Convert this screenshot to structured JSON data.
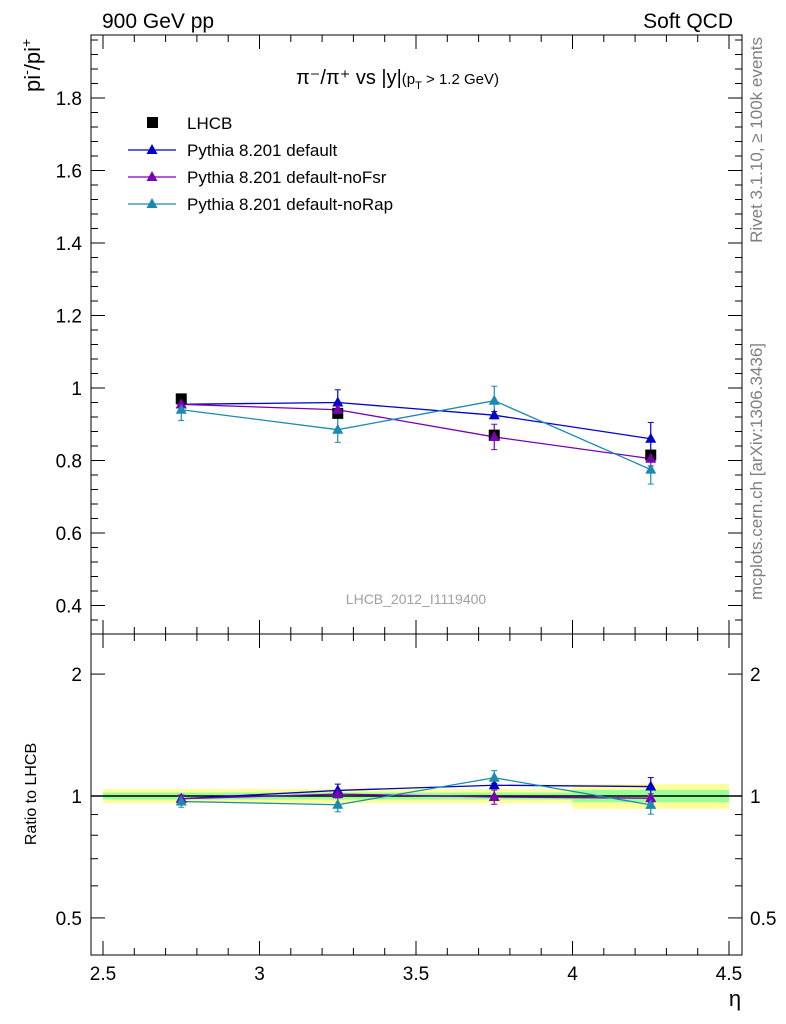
{
  "header": {
    "left": "900 GeV pp",
    "right": "Soft QCD"
  },
  "side_labels": {
    "rivet": "Rivet 3.1.10, ≥ 100k events",
    "mcplots": "mcplots.cern.ch [arXiv:1306.3436]"
  },
  "main": {
    "title_main": "π⁻/π⁺ vs |y|",
    "title_sub": "(p",
    "title_sub_idx": "T",
    "title_sub_rest": " > 1.2 GeV)",
    "ylabel_base": "pi",
    "ylabel_sup1": "-",
    "ylabel_mid": "/pi",
    "ylabel_sup2": "+",
    "watermark": "LHCB_2012_I1119400"
  },
  "ratio": {
    "ylabel": "Ratio to LHCB"
  },
  "colors": {
    "data": "#000000",
    "default": "#0000cc",
    "noFsr": "#7a00b0",
    "noRap": "#1a8ab0",
    "band_yellow": "#ffff99",
    "band_green": "#99ff99"
  },
  "chart_data": {
    "type": "scatter",
    "xlabel": "η",
    "ylabel": "pi-/pi+",
    "xlim": [
      2.5,
      4.5
    ],
    "ylim": [
      0.35,
      1.98
    ],
    "ratio_ylim": [
      0.4,
      2.3
    ],
    "x_ticks": [
      "2.5",
      "3",
      "3.5",
      "4",
      "4.5"
    ],
    "y_ticks": [
      "0.4",
      "0.6",
      "0.8",
      "1",
      "1.2",
      "1.4",
      "1.6",
      "1.8"
    ],
    "ratio_y_ticks": [
      "0.5",
      "1",
      "2"
    ],
    "legend": [
      "LHCB",
      "Pythia 8.201 default",
      "Pythia 8.201 default-noFsr",
      "Pythia 8.201 default-noRap"
    ],
    "data": {
      "name": "LHCB",
      "x": [
        2.75,
        3.25,
        3.75,
        4.25
      ],
      "xlow": [
        2.5,
        3.0,
        3.5,
        4.0
      ],
      "xhigh": [
        3.0,
        3.5,
        4.0,
        4.5
      ],
      "y": [
        0.97,
        0.93,
        0.87,
        0.815
      ],
      "band_inner": [
        0.02,
        0.02,
        0.02,
        0.035
      ],
      "band_outer": [
        0.04,
        0.04,
        0.04,
        0.07
      ]
    },
    "series": [
      {
        "name": "Pythia 8.201 default",
        "key": "default",
        "x": [
          2.75,
          3.25,
          3.75,
          4.25
        ],
        "y": [
          0.955,
          0.96,
          0.925,
          0.86
        ],
        "err": [
          0.02,
          0.035,
          0.01,
          0.045
        ]
      },
      {
        "name": "Pythia 8.201 default-noFsr",
        "key": "noFsr",
        "x": [
          2.75,
          3.25,
          3.75,
          4.25
        ],
        "y": [
          0.955,
          0.94,
          0.865,
          0.805
        ],
        "err": [
          0.02,
          0.02,
          0.035,
          0.02
        ]
      },
      {
        "name": "Pythia 8.201 default-noRap",
        "key": "noRap",
        "x": [
          2.75,
          3.25,
          3.75,
          4.25
        ],
        "y": [
          0.94,
          0.885,
          0.965,
          0.775
        ],
        "err": [
          0.03,
          0.035,
          0.04,
          0.04
        ]
      }
    ]
  }
}
